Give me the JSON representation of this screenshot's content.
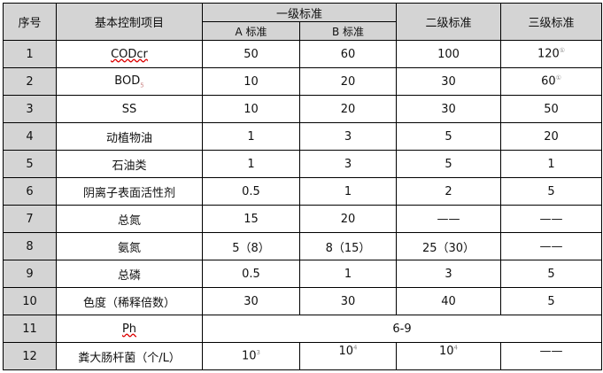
{
  "headers": {
    "no": "序号",
    "item": "基本控制项目",
    "level1": "一级标准",
    "a": "A 标准",
    "b": "B 标准",
    "level2": "二级标准",
    "level3": "三级标准"
  },
  "rows": [
    {
      "no": "1",
      "item": "CODcr",
      "a": "50",
      "b": "60",
      "l2": "100",
      "l3": "120",
      "l3_note": "①"
    },
    {
      "no": "2",
      "item": "BOD",
      "item_sub": "5",
      "a": "10",
      "b": "20",
      "l2": "30",
      "l3": "60",
      "l3_note": "①"
    },
    {
      "no": "3",
      "item": "SS",
      "a": "10",
      "b": "20",
      "l2": "30",
      "l3": "50"
    },
    {
      "no": "4",
      "item": "动植物油",
      "a": "1",
      "b": "3",
      "l2": "5",
      "l3": "20"
    },
    {
      "no": "5",
      "item": "石油类",
      "a": "1",
      "b": "3",
      "l2": "5",
      "l3": "1"
    },
    {
      "no": "6",
      "item": "阴离子表面活性剂",
      "a": "0.5",
      "b": "1",
      "l2": "2",
      "l3": "5"
    },
    {
      "no": "7",
      "item": "总氮",
      "a": "15",
      "b": "20",
      "l2": "——",
      "l3": "——"
    },
    {
      "no": "8",
      "item": "氨氮",
      "a": "5（8）",
      "b": "8（15）",
      "l2": "25（30）",
      "l3": "——"
    },
    {
      "no": "9",
      "item": "总磷",
      "a": "0.5",
      "b": "1",
      "l2": "3",
      "l3": "5"
    },
    {
      "no": "10",
      "item": "色度（稀释倍数）",
      "a": "30",
      "b": "30",
      "l2": "40",
      "l3": "5"
    },
    {
      "no": "11",
      "item": "Ph",
      "merged": "6-9"
    },
    {
      "no": "12",
      "item": "粪大肠杆菌（个/L）",
      "a": "10",
      "a_exp": "3",
      "b": "10",
      "b_exp": "4",
      "l2": "10",
      "l2_exp": "4",
      "l3": "——"
    }
  ]
}
